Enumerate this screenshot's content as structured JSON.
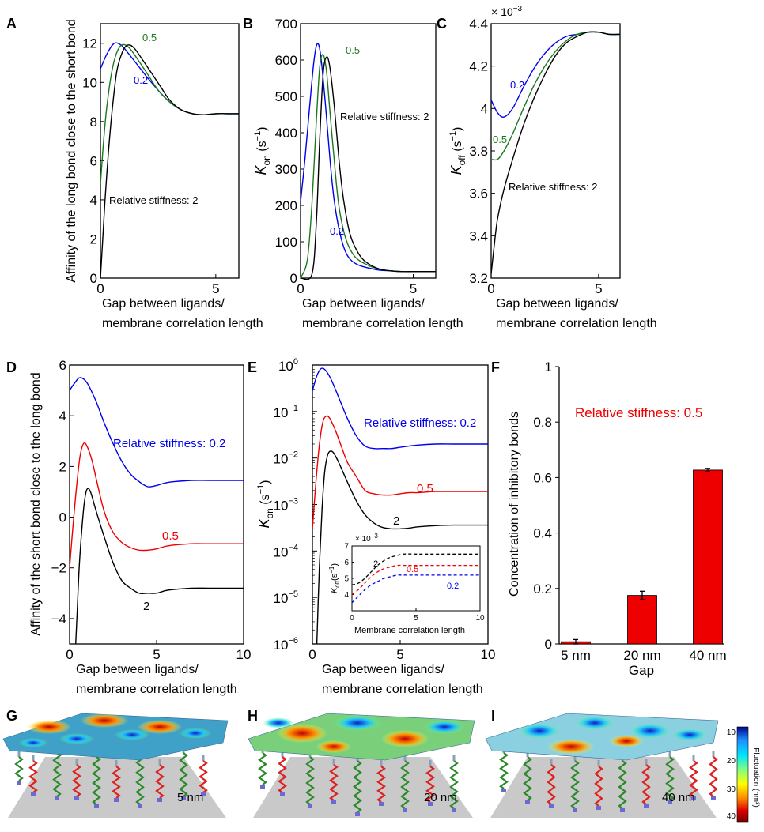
{
  "panels": {
    "A": {
      "label": "A",
      "ylabel": "Affinity of the long bond close to the short bond",
      "xlabel": [
        "Gap between ligands/",
        "membrane correlation length"
      ],
      "xticks": [
        "0",
        "5"
      ],
      "yticks": [
        "0",
        "2",
        "4",
        "6",
        "8",
        "10",
        "12"
      ],
      "annotations": [
        "0.5",
        "0.2",
        "Relative stiffness: 2"
      ]
    },
    "B": {
      "label": "B",
      "ylabel_main": "K",
      "ylabel_sub": "on",
      "ylabel_unit": " (s",
      "ylabel_exp": "−1",
      "ylabel_close": ")",
      "xlabel": [
        "Gap between ligands/",
        "membrane correlation length"
      ],
      "xticks": [
        "0",
        "5"
      ],
      "yticks": [
        "0",
        "100",
        "200",
        "300",
        "400",
        "500",
        "600",
        "700"
      ],
      "annotations": [
        "0.5",
        "Relative stiffness: 2",
        "0.2"
      ]
    },
    "C": {
      "label": "C",
      "scale_note": "× 10",
      "scale_exp": "−3",
      "ylabel_main": "K",
      "ylabel_sub": "off",
      "ylabel_unit": " (s",
      "ylabel_exp": "−1",
      "ylabel_close": ")",
      "xlabel": [
        "Gap between ligands/",
        "membrane correlation length"
      ],
      "xticks": [
        "0",
        "5"
      ],
      "yticks": [
        "3.2",
        "3.4",
        "3.6",
        "3.8",
        "4",
        "4.2",
        "4.4"
      ],
      "annotations": [
        "0.2",
        "0.5",
        "Relative stiffness: 2"
      ]
    },
    "D": {
      "label": "D",
      "ylabel": "Affinity of the short bond close to the long bond",
      "xlabel": [
        "Gap between ligands/",
        "membrane correlation length"
      ],
      "xticks": [
        "0",
        "5",
        "10"
      ],
      "yticks": [
        "−4",
        "−2",
        "0",
        "2",
        "4",
        "6"
      ],
      "annotations": [
        "Relative stiffness: 0.2",
        "0.5",
        "2"
      ]
    },
    "E": {
      "label": "E",
      "ylabel_main": "K",
      "ylabel_sub": "on",
      "ylabel_unit": " (s",
      "ylabel_exp": "−1",
      "ylabel_close": ")",
      "xlabel": [
        "Gap between ligands/",
        "membrane correlation length"
      ],
      "xticks": [
        "0",
        "5",
        "10"
      ],
      "ytick_base": "10",
      "ytick_exps": [
        "−6",
        "−5",
        "−4",
        "−3",
        "−2",
        "−1",
        "0"
      ],
      "annotations": [
        "Relative stiffness: 0.2",
        "0.5",
        "2"
      ],
      "inset": {
        "scale_note": "× 10",
        "scale_exp": "−3",
        "ylabel_main": "K",
        "ylabel_sub": "off",
        "ylabel_unit": "(s",
        "ylabel_exp": "−1",
        "ylabel_close": ")",
        "xlabel": "Membrane correlation length",
        "xticks": [
          "0",
          "5",
          "10"
        ],
        "yticks": [
          "4",
          "5",
          "6",
          "7"
        ],
        "annotations": [
          "2",
          "0.5",
          "0.2"
        ]
      }
    },
    "F": {
      "label": "F",
      "ylabel": "Concentration of inhibitory bonds",
      "xlabel": "Gap",
      "yticks": [
        "0",
        "0.2",
        "0.4",
        "0.6",
        "0.8",
        "1"
      ],
      "annotation": "Relative stiffness: 0.5"
    },
    "G": {
      "label": "G",
      "gap_label": "5 nm"
    },
    "H": {
      "label": "H",
      "gap_label": "20 nm"
    },
    "I": {
      "label": "I",
      "gap_label": "40 nm"
    },
    "colorbar": {
      "title": "Fluctuation (nm²)",
      "ticks": [
        "10",
        "20",
        "30",
        "40"
      ],
      "colors": [
        "#00008b",
        "#1e90ff",
        "#00e5ff",
        "#7fff7f",
        "#ffff00",
        "#ff8c00",
        "#e00000",
        "#7a0000"
      ]
    }
  },
  "colors": {
    "black": "#000000",
    "green": "#1a7a1a",
    "blue": "#0000ee",
    "red": "#ee0000"
  },
  "chart_data": [
    {
      "panel": "A",
      "type": "line",
      "xlabel": "Gap between ligands/ membrane correlation length",
      "ylabel": "Affinity of the long bond close to the short bond",
      "xlim": [
        0,
        6
      ],
      "ylim": [
        0,
        13
      ],
      "series": [
        {
          "name": "0.2",
          "color": "#0000ee",
          "x": [
            0,
            0.3,
            0.6,
            0.9,
            1.2,
            1.6,
            2,
            2.5,
            3,
            3.5,
            4,
            4.5,
            5,
            5.5,
            6
          ],
          "y": [
            10.7,
            11.5,
            12.0,
            11.9,
            11.5,
            10.9,
            10.3,
            9.6,
            9.0,
            8.6,
            8.4,
            8.35,
            8.4,
            8.4,
            8.4
          ]
        },
        {
          "name": "0.5",
          "color": "#1a7a1a",
          "x": [
            0,
            0.15,
            0.3,
            0.5,
            0.7,
            0.9,
            1.1,
            1.3,
            1.6,
            2,
            2.5,
            3,
            3.5,
            4,
            4.5,
            5,
            5.5,
            6
          ],
          "y": [
            4.8,
            7.2,
            9.0,
            10.6,
            11.5,
            11.9,
            11.9,
            11.7,
            11.2,
            10.5,
            9.6,
            9.0,
            8.6,
            8.4,
            8.35,
            8.4,
            8.4,
            8.4
          ]
        },
        {
          "name": "2",
          "color": "#000000",
          "x": [
            0,
            0.1,
            0.2,
            0.35,
            0.5,
            0.7,
            0.9,
            1.1,
            1.3,
            1.5,
            1.8,
            2.2,
            2.6,
            3,
            3.5,
            4,
            4.5,
            5,
            5.5,
            6
          ],
          "y": [
            0,
            2.0,
            4.0,
            6.5,
            8.5,
            10.5,
            11.4,
            11.85,
            11.9,
            11.7,
            11.2,
            10.5,
            9.8,
            9.1,
            8.6,
            8.4,
            8.35,
            8.4,
            8.4,
            8.4
          ]
        }
      ]
    },
    {
      "panel": "B",
      "type": "line",
      "xlabel": "Gap between ligands/ membrane correlation length",
      "ylabel": "Kon (s−1)",
      "xlim": [
        0,
        6
      ],
      "ylim": [
        0,
        700
      ],
      "series": [
        {
          "name": "0.2",
          "color": "#0000ee",
          "x": [
            0,
            0.2,
            0.4,
            0.6,
            0.75,
            0.9,
            1.1,
            1.3,
            1.5,
            1.8,
            2.1,
            2.5,
            3,
            3.5,
            4,
            4.5,
            5,
            5.5,
            6
          ],
          "y": [
            210,
            330,
            470,
            600,
            645,
            610,
            480,
            330,
            210,
            110,
            60,
            38,
            28,
            22,
            20,
            18,
            18,
            18,
            18
          ]
        },
        {
          "name": "0.5",
          "color": "#1a7a1a",
          "x": [
            0,
            0.3,
            0.5,
            0.7,
            0.85,
            1.0,
            1.15,
            1.3,
            1.5,
            1.7,
            2,
            2.4,
            3,
            3.5,
            4,
            4.5,
            5,
            5.5,
            6
          ],
          "y": [
            0,
            50,
            200,
            430,
            580,
            615,
            570,
            460,
            320,
            200,
            110,
            60,
            35,
            25,
            20,
            18,
            18,
            18,
            18
          ]
        },
        {
          "name": "2",
          "color": "#000000",
          "x": [
            0,
            0.5,
            0.7,
            0.85,
            1.0,
            1.15,
            1.3,
            1.5,
            1.7,
            1.9,
            2.2,
            2.6,
            3,
            3.5,
            4,
            4.5,
            5,
            5.5,
            6
          ],
          "y": [
            0,
            10,
            150,
            380,
            560,
            608,
            580,
            470,
            330,
            220,
            120,
            65,
            40,
            25,
            20,
            18,
            18,
            18,
            18
          ]
        }
      ]
    },
    {
      "panel": "C",
      "type": "line",
      "xlabel": "Gap between ligands/ membrane correlation length",
      "ylabel": "Koff (s−1)",
      "ylim": [
        0.0032,
        0.0044
      ],
      "xlim": [
        0,
        6
      ],
      "series": [
        {
          "name": "0.2",
          "color": "#0000ee",
          "x": [
            0,
            0.3,
            0.6,
            1,
            1.5,
            2,
            2.5,
            3,
            3.5,
            4,
            4.5,
            5,
            5.5,
            6
          ],
          "y": [
            0.00404,
            0.00398,
            0.00396,
            0.004,
            0.0041,
            0.00419,
            0.00426,
            0.00431,
            0.00434,
            0.00435,
            0.00436,
            0.00436,
            0.00435,
            0.00435
          ]
        },
        {
          "name": "0.5",
          "color": "#1a7a1a",
          "x": [
            0,
            0.3,
            0.6,
            1,
            1.5,
            2,
            2.5,
            3,
            3.5,
            4,
            4.5,
            5,
            5.5,
            6
          ],
          "y": [
            0.00376,
            0.00376,
            0.0038,
            0.00388,
            0.004,
            0.00411,
            0.0042,
            0.00427,
            0.00432,
            0.00435,
            0.00436,
            0.00436,
            0.00435,
            0.00435
          ]
        },
        {
          "name": "2",
          "color": "#000000",
          "x": [
            0,
            0.15,
            0.3,
            0.6,
            1,
            1.5,
            2,
            2.5,
            3,
            3.5,
            4,
            4.5,
            5,
            5.5,
            6
          ],
          "y": [
            0.00322,
            0.00336,
            0.00348,
            0.00362,
            0.00376,
            0.00392,
            0.00405,
            0.00416,
            0.00425,
            0.00431,
            0.00434,
            0.00436,
            0.00436,
            0.00435,
            0.00435
          ]
        }
      ]
    },
    {
      "panel": "D",
      "type": "line",
      "xlabel": "Gap between ligands/ membrane correlation length",
      "ylabel": "Affinity of the short bond close to the long bond",
      "xlim": [
        0,
        10
      ],
      "ylim": [
        -5,
        6
      ],
      "series": [
        {
          "name": "Relative stiffness: 0.2",
          "color": "#0000ee",
          "x": [
            0,
            0.3,
            0.6,
            1,
            1.5,
            2,
            2.5,
            3,
            3.5,
            4,
            4.5,
            5,
            5.5,
            6,
            7,
            8,
            9,
            10
          ],
          "y": [
            5.0,
            5.3,
            5.5,
            5.3,
            4.6,
            3.7,
            2.9,
            2.2,
            1.7,
            1.4,
            1.2,
            1.25,
            1.35,
            1.4,
            1.45,
            1.45,
            1.45,
            1.45
          ]
        },
        {
          "name": "0.5",
          "color": "#ee0000",
          "x": [
            0,
            0.2,
            0.4,
            0.6,
            0.8,
            1,
            1.3,
            1.6,
            2,
            2.5,
            3,
            3.5,
            4,
            4.5,
            5,
            5.5,
            6,
            7,
            8,
            9,
            10
          ],
          "y": [
            -2.0,
            -0.3,
            1.2,
            2.4,
            2.9,
            2.8,
            2.2,
            1.3,
            0.2,
            -0.6,
            -1.0,
            -1.2,
            -1.3,
            -1.3,
            -1.25,
            -1.15,
            -1.1,
            -1.05,
            -1.05,
            -1.05,
            -1.05
          ]
        },
        {
          "name": "2",
          "color": "#000000",
          "x": [
            0.35,
            0.45,
            0.55,
            0.7,
            0.85,
            1,
            1.2,
            1.5,
            2,
            2.5,
            3,
            3.5,
            4,
            4.5,
            5,
            5.5,
            6,
            7,
            8,
            9,
            10
          ],
          "y": [
            -5.0,
            -3.5,
            -2.0,
            -0.5,
            0.6,
            1.1,
            1.0,
            0.3,
            -0.8,
            -1.8,
            -2.5,
            -2.8,
            -3.0,
            -3.0,
            -3.0,
            -2.9,
            -2.85,
            -2.8,
            -2.8,
            -2.8,
            -2.8
          ]
        }
      ]
    },
    {
      "panel": "E",
      "type": "line",
      "xlabel": "Gap between ligands/ membrane correlation length",
      "ylabel": "Kon (s−1)",
      "yscale": "log",
      "xlim": [
        0,
        10
      ],
      "ylim": [
        1e-06,
        1
      ],
      "series": [
        {
          "name": "Relative stiffness: 0.2",
          "color": "#0000ee",
          "x": [
            0,
            0.3,
            0.6,
            1,
            1.5,
            2,
            2.5,
            3,
            3.5,
            4,
            4.5,
            5,
            5.5,
            6,
            7,
            8,
            9,
            10
          ],
          "y": [
            0.28,
            0.65,
            0.85,
            0.55,
            0.2,
            0.07,
            0.03,
            0.018,
            0.016,
            0.016,
            0.016,
            0.017,
            0.018,
            0.019,
            0.02,
            0.02,
            0.02,
            0.02
          ]
        },
        {
          "name": "0.5",
          "color": "#ee0000",
          "x": [
            0,
            0.2,
            0.4,
            0.6,
            0.8,
            1,
            1.3,
            1.6,
            2,
            2.5,
            3,
            3.5,
            4,
            4.5,
            5,
            5.5,
            6,
            7,
            8,
            9,
            10
          ],
          "y": [
            0.0003,
            0.003,
            0.02,
            0.06,
            0.08,
            0.07,
            0.04,
            0.02,
            0.008,
            0.004,
            0.002,
            0.0017,
            0.0016,
            0.0016,
            0.0017,
            0.0018,
            0.0018,
            0.0019,
            0.0019,
            0.0019,
            0.0019
          ]
        },
        {
          "name": "2",
          "color": "#000000",
          "x": [
            0.25,
            0.4,
            0.55,
            0.7,
            0.85,
            1,
            1.2,
            1.5,
            2,
            2.5,
            3,
            3.5,
            4,
            4.5,
            5,
            5.5,
            6,
            7,
            8,
            9,
            10
          ],
          "y": [
            1e-06,
            5e-05,
            0.0008,
            0.005,
            0.011,
            0.014,
            0.013,
            0.008,
            0.003,
            0.0012,
            0.0006,
            0.0004,
            0.00032,
            0.0003,
            0.0003,
            0.00031,
            0.00033,
            0.00035,
            0.00036,
            0.00036,
            0.00036
          ]
        }
      ]
    },
    {
      "panel": "E-inset",
      "type": "line",
      "xlabel": "Membrane correlation length",
      "ylabel": "Koff (s−1)",
      "xlim": [
        0,
        10
      ],
      "ylim": [
        0.003,
        0.007
      ],
      "series": [
        {
          "name": "2",
          "color": "#000000",
          "x": [
            0,
            0.5,
            1,
            1.5,
            2,
            2.5,
            3,
            3.5,
            4,
            5,
            6,
            7,
            8,
            9,
            10
          ],
          "y": [
            0.0046,
            0.0047,
            0.005,
            0.0054,
            0.0058,
            0.0061,
            0.0063,
            0.0064,
            0.0065,
            0.0065,
            0.0065,
            0.0065,
            0.0065,
            0.0065,
            0.0065
          ]
        },
        {
          "name": "0.5",
          "color": "#ee0000",
          "x": [
            0,
            0.5,
            1,
            1.5,
            2,
            2.5,
            3,
            3.5,
            4,
            5,
            6,
            7,
            8,
            9,
            10
          ],
          "y": [
            0.004,
            0.0043,
            0.0047,
            0.0051,
            0.0054,
            0.0056,
            0.0057,
            0.0058,
            0.0058,
            0.0058,
            0.0058,
            0.0058,
            0.0058,
            0.0058,
            0.0058
          ]
        },
        {
          "name": "0.2",
          "color": "#0000ee",
          "x": [
            0,
            0.5,
            1,
            1.5,
            2,
            2.5,
            3,
            3.5,
            4,
            5,
            6,
            7,
            8,
            9,
            10
          ],
          "y": [
            0.0035,
            0.0039,
            0.0043,
            0.0046,
            0.0048,
            0.005,
            0.0051,
            0.0052,
            0.0052,
            0.0052,
            0.0052,
            0.0052,
            0.0052,
            0.0052,
            0.0052
          ]
        }
      ]
    },
    {
      "panel": "F",
      "type": "bar",
      "xlabel": "Gap",
      "ylabel": "Concentration of inhibitory bonds",
      "ylim": [
        0,
        1
      ],
      "categories": [
        "5 nm",
        "20 nm",
        "40 nm"
      ],
      "values": [
        0.008,
        0.175,
        0.627
      ],
      "errors": [
        0.008,
        0.015,
        0.006
      ],
      "color": "#ee0000",
      "annotation": "Relative stiffness: 0.5"
    }
  ]
}
